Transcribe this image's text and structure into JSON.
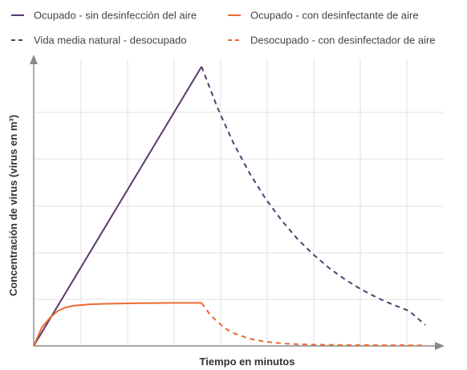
{
  "chart_data": {
    "type": "line",
    "title": "",
    "xlabel": "Tiempo en minutos",
    "ylabel": "Concentración de virus (virus en m³)",
    "xlim": [
      0,
      100
    ],
    "ylim": [
      0,
      100
    ],
    "grid": true,
    "tick_labels_shown": false,
    "legend_position": "top",
    "series": [
      {
        "name": "Ocupado - sin desinfección del aire",
        "color": "#5a3a6e",
        "dash": "solid",
        "x": [
          0,
          42
        ],
        "y": [
          0,
          100
        ]
      },
      {
        "name": "Ocupado - con desinfectante de aire",
        "color": "#ec6a31",
        "dash": "solid",
        "x": [
          0,
          2,
          4,
          6,
          8,
          10,
          14,
          18,
          22,
          26,
          30,
          34,
          38,
          42
        ],
        "y": [
          0,
          6.5,
          10,
          12.5,
          13.8,
          14.4,
          14.9,
          15.1,
          15.2,
          15.3,
          15.35,
          15.4,
          15.4,
          15.4
        ]
      },
      {
        "name": "Vida media natural - desocupado",
        "color": "#5a3a6e",
        "dash": "dashed",
        "x": [
          42,
          46,
          50,
          54,
          58,
          62,
          66,
          70,
          74,
          78,
          82,
          86,
          90,
          94,
          98
        ],
        "y": [
          100,
          85.2,
          72.6,
          61.9,
          52.8,
          45.0,
          38.3,
          32.7,
          27.8,
          23.7,
          20.2,
          17.2,
          14.7,
          12.5,
          7.5
        ]
      },
      {
        "name": "Desocupado - con desinfectador de aire",
        "color": "#ec6a31",
        "dash": "dashed",
        "x": [
          42,
          44,
          46,
          48,
          50,
          54,
          58,
          62,
          66,
          70,
          80,
          90,
          98
        ],
        "y": [
          15.4,
          11.5,
          8.6,
          6.2,
          4.6,
          2.6,
          1.5,
          0.9,
          0.6,
          0.45,
          0.3,
          0.25,
          0.2
        ]
      }
    ]
  }
}
